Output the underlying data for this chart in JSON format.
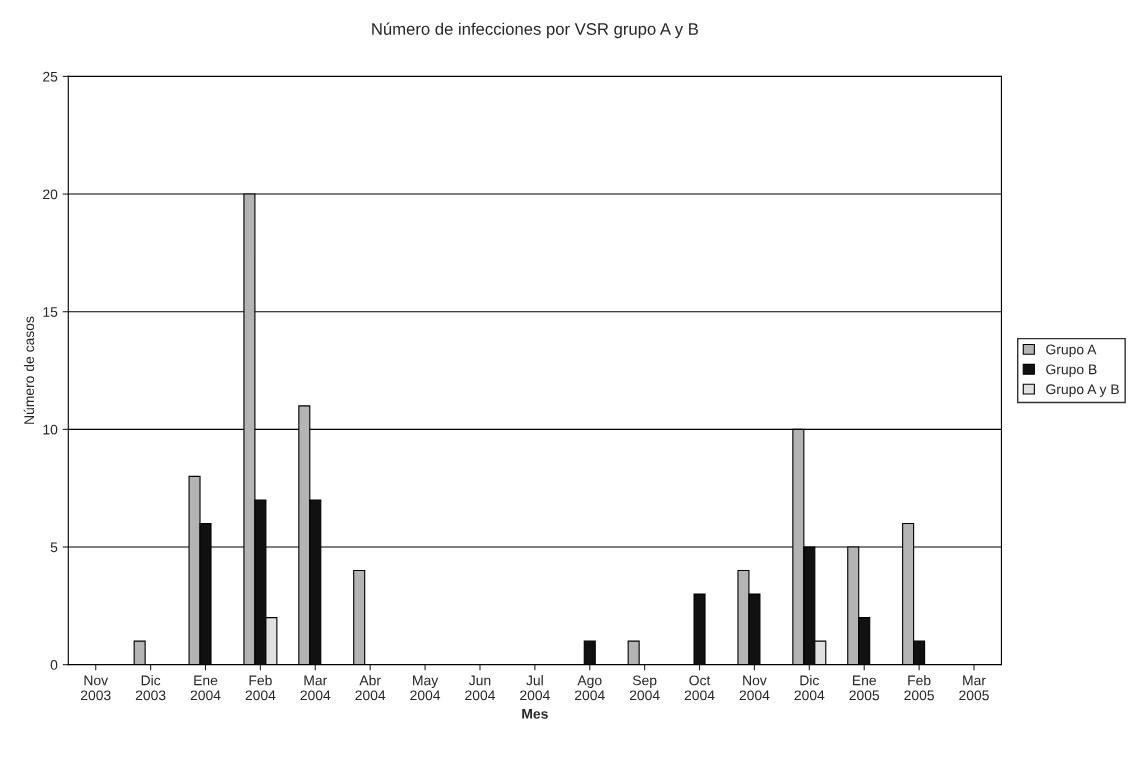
{
  "chart_data": {
    "type": "bar",
    "title": "Número de infecciones por VSR grupo A y B",
    "xlabel": "Mes",
    "ylabel": "Número de casos",
    "categories": [
      "Nov\n2003",
      "Dic\n2003",
      "Ene\n2004",
      "Feb\n2004",
      "Mar\n2004",
      "Abr\n2004",
      "May\n2004",
      "Jun\n2004",
      "Jul\n2004",
      "Ago\n2004",
      "Sep\n2004",
      "Oct\n2004",
      "Nov\n2004",
      "Dic\n2004",
      "Ene\n2005",
      "Feb\n2005",
      "Mar\n2005"
    ],
    "series": [
      {
        "name": "Grupo A",
        "color": "#b4b4b4",
        "values": [
          null,
          1,
          8,
          20,
          11,
          4,
          null,
          null,
          null,
          null,
          1,
          null,
          4,
          10,
          5,
          6,
          null
        ]
      },
      {
        "name": "Grupo B",
        "color": "#111111",
        "values": [
          null,
          null,
          6,
          7,
          7,
          null,
          null,
          null,
          null,
          1,
          null,
          3,
          3,
          5,
          2,
          1,
          null
        ]
      },
      {
        "name": "Grupo A y B",
        "color": "#e0e0e0",
        "values": [
          null,
          null,
          null,
          2,
          null,
          null,
          null,
          null,
          null,
          null,
          null,
          null,
          null,
          1,
          null,
          null,
          null
        ]
      }
    ],
    "ylim": [
      0,
      25
    ],
    "yticks": [
      0,
      5,
      10,
      15,
      20,
      25
    ],
    "grid": "y",
    "legend": "right"
  }
}
